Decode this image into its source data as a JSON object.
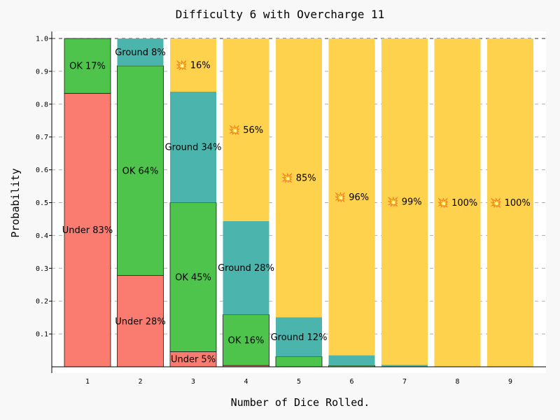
{
  "chart_data": {
    "type": "bar",
    "stacked": true,
    "title": "Difficulty 6 with Overcharge 11",
    "xlabel": "Number of Dice Rolled.",
    "ylabel": "Probability",
    "categories": [
      "1",
      "2",
      "3",
      "4",
      "5",
      "6",
      "7",
      "8",
      "9"
    ],
    "ylim": [
      0,
      1.0
    ],
    "yticks": [
      "0.1",
      "0.2",
      "0.3",
      "0.4",
      "0.5",
      "0.6",
      "0.7",
      "0.8",
      "0.9",
      "1.0"
    ],
    "grid": true,
    "series": [
      {
        "key": "under",
        "color": "#fa7b6f",
        "values": [
          0.833,
          0.278,
          0.046,
          0.004,
          0.0,
          0.0,
          0.0,
          0.0,
          0.0
        ],
        "labels": [
          "Under 83%",
          "Under 28%",
          "Under 5%",
          "",
          "",
          "",
          "",
          "",
          ""
        ]
      },
      {
        "key": "ok",
        "color": "#4ec44d",
        "values": [
          0.167,
          0.639,
          0.454,
          0.155,
          0.031,
          0.004,
          0.0,
          0.0,
          0.0
        ],
        "labels": [
          "OK 17%",
          "OK 64%",
          "OK 45%",
          "OK 16%",
          "",
          "",
          "",
          "",
          ""
        ]
      },
      {
        "key": "ground",
        "color": "#4bb5ad",
        "values": [
          0.0,
          0.083,
          0.338,
          0.285,
          0.12,
          0.031,
          0.006,
          0.001,
          0.0
        ],
        "labels": [
          "",
          "Ground 8%",
          "Ground 34%",
          "Ground 28%",
          "Ground 12%",
          "",
          "",
          "",
          ""
        ]
      },
      {
        "key": "overcharge",
        "color": "#ffd24d",
        "values": [
          0.0,
          0.0,
          0.162,
          0.556,
          0.849,
          0.965,
          0.994,
          0.999,
          1.0
        ],
        "labels": [
          "",
          "",
          "💥 16%",
          "💥 56%",
          "💥 85%",
          "💥 96%",
          "💥 99%",
          "💥 100%",
          "💥 100%"
        ]
      }
    ]
  }
}
